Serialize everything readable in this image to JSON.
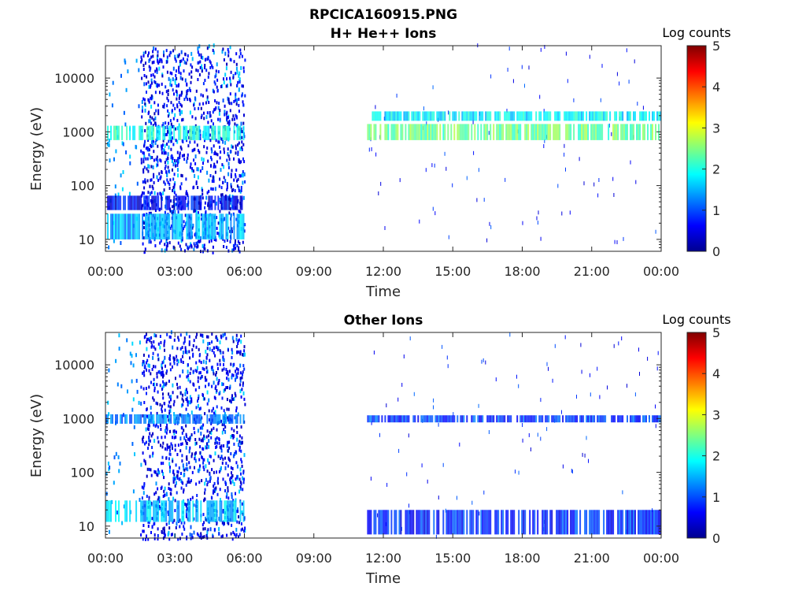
{
  "figure": {
    "title": "RPCICA160915.PNG"
  },
  "chart_data": [
    {
      "type": "heatmap",
      "title": "H+ He++ Ions",
      "xlabel": "Time",
      "ylabel": "Energy (eV)",
      "x_ticks": [
        "00:00",
        "03:00",
        "06:00",
        "09:00",
        "12:00",
        "15:00",
        "18:00",
        "21:00",
        "00:00"
      ],
      "x_range_hours": [
        0,
        24
      ],
      "y_scale": "log",
      "y_ticks": [
        10,
        100,
        1000,
        10000
      ],
      "y_tick_labels": [
        "10",
        "100",
        "1000",
        "10000"
      ],
      "y_range": [
        6,
        40000
      ],
      "colorbar": {
        "label": "Log counts",
        "ticks": [
          "0",
          "1",
          "2",
          "3",
          "4",
          "5"
        ],
        "range": [
          0,
          5
        ],
        "colormap": "jet"
      },
      "data_gaps_hours": [
        [
          6.0,
          11.3
        ]
      ],
      "bands": [
        {
          "t": [
            0,
            6
          ],
          "e": [
            700,
            1300
          ],
          "level": 2.0
        },
        {
          "t": [
            11.3,
            24
          ],
          "e": [
            700,
            1400
          ],
          "level": 2.4
        },
        {
          "t": [
            11.3,
            24
          ],
          "e": [
            1600,
            2400
          ],
          "level": 1.8
        },
        {
          "t": [
            0,
            6
          ],
          "e": [
            10,
            30
          ],
          "level": 1.5
        },
        {
          "t": [
            0,
            6
          ],
          "e": [
            35,
            65
          ],
          "level": 0.6
        }
      ]
    },
    {
      "type": "heatmap",
      "title": "Other Ions",
      "xlabel": "Time",
      "ylabel": "Energy (eV)",
      "x_ticks": [
        "00:00",
        "03:00",
        "06:00",
        "09:00",
        "12:00",
        "15:00",
        "18:00",
        "21:00",
        "00:00"
      ],
      "x_range_hours": [
        0,
        24
      ],
      "y_scale": "log",
      "y_ticks": [
        10,
        100,
        1000,
        10000
      ],
      "y_tick_labels": [
        "10",
        "100",
        "1000",
        "10000"
      ],
      "y_range": [
        6,
        40000
      ],
      "colorbar": {
        "label": "Log counts",
        "ticks": [
          "0",
          "1",
          "2",
          "3",
          "4",
          "5"
        ],
        "range": [
          0,
          5
        ],
        "colormap": "jet"
      },
      "data_gaps_hours": [
        [
          6.0,
          11.3
        ]
      ],
      "bands": [
        {
          "t": [
            0,
            6
          ],
          "e": [
            800,
            1200
          ],
          "level": 1.3
        },
        {
          "t": [
            11.3,
            24
          ],
          "e": [
            850,
            1150
          ],
          "level": 0.9
        },
        {
          "t": [
            0,
            6
          ],
          "e": [
            12,
            30
          ],
          "level": 1.6
        },
        {
          "t": [
            11.3,
            24
          ],
          "e": [
            7,
            20
          ],
          "level": 0.8
        }
      ]
    }
  ]
}
